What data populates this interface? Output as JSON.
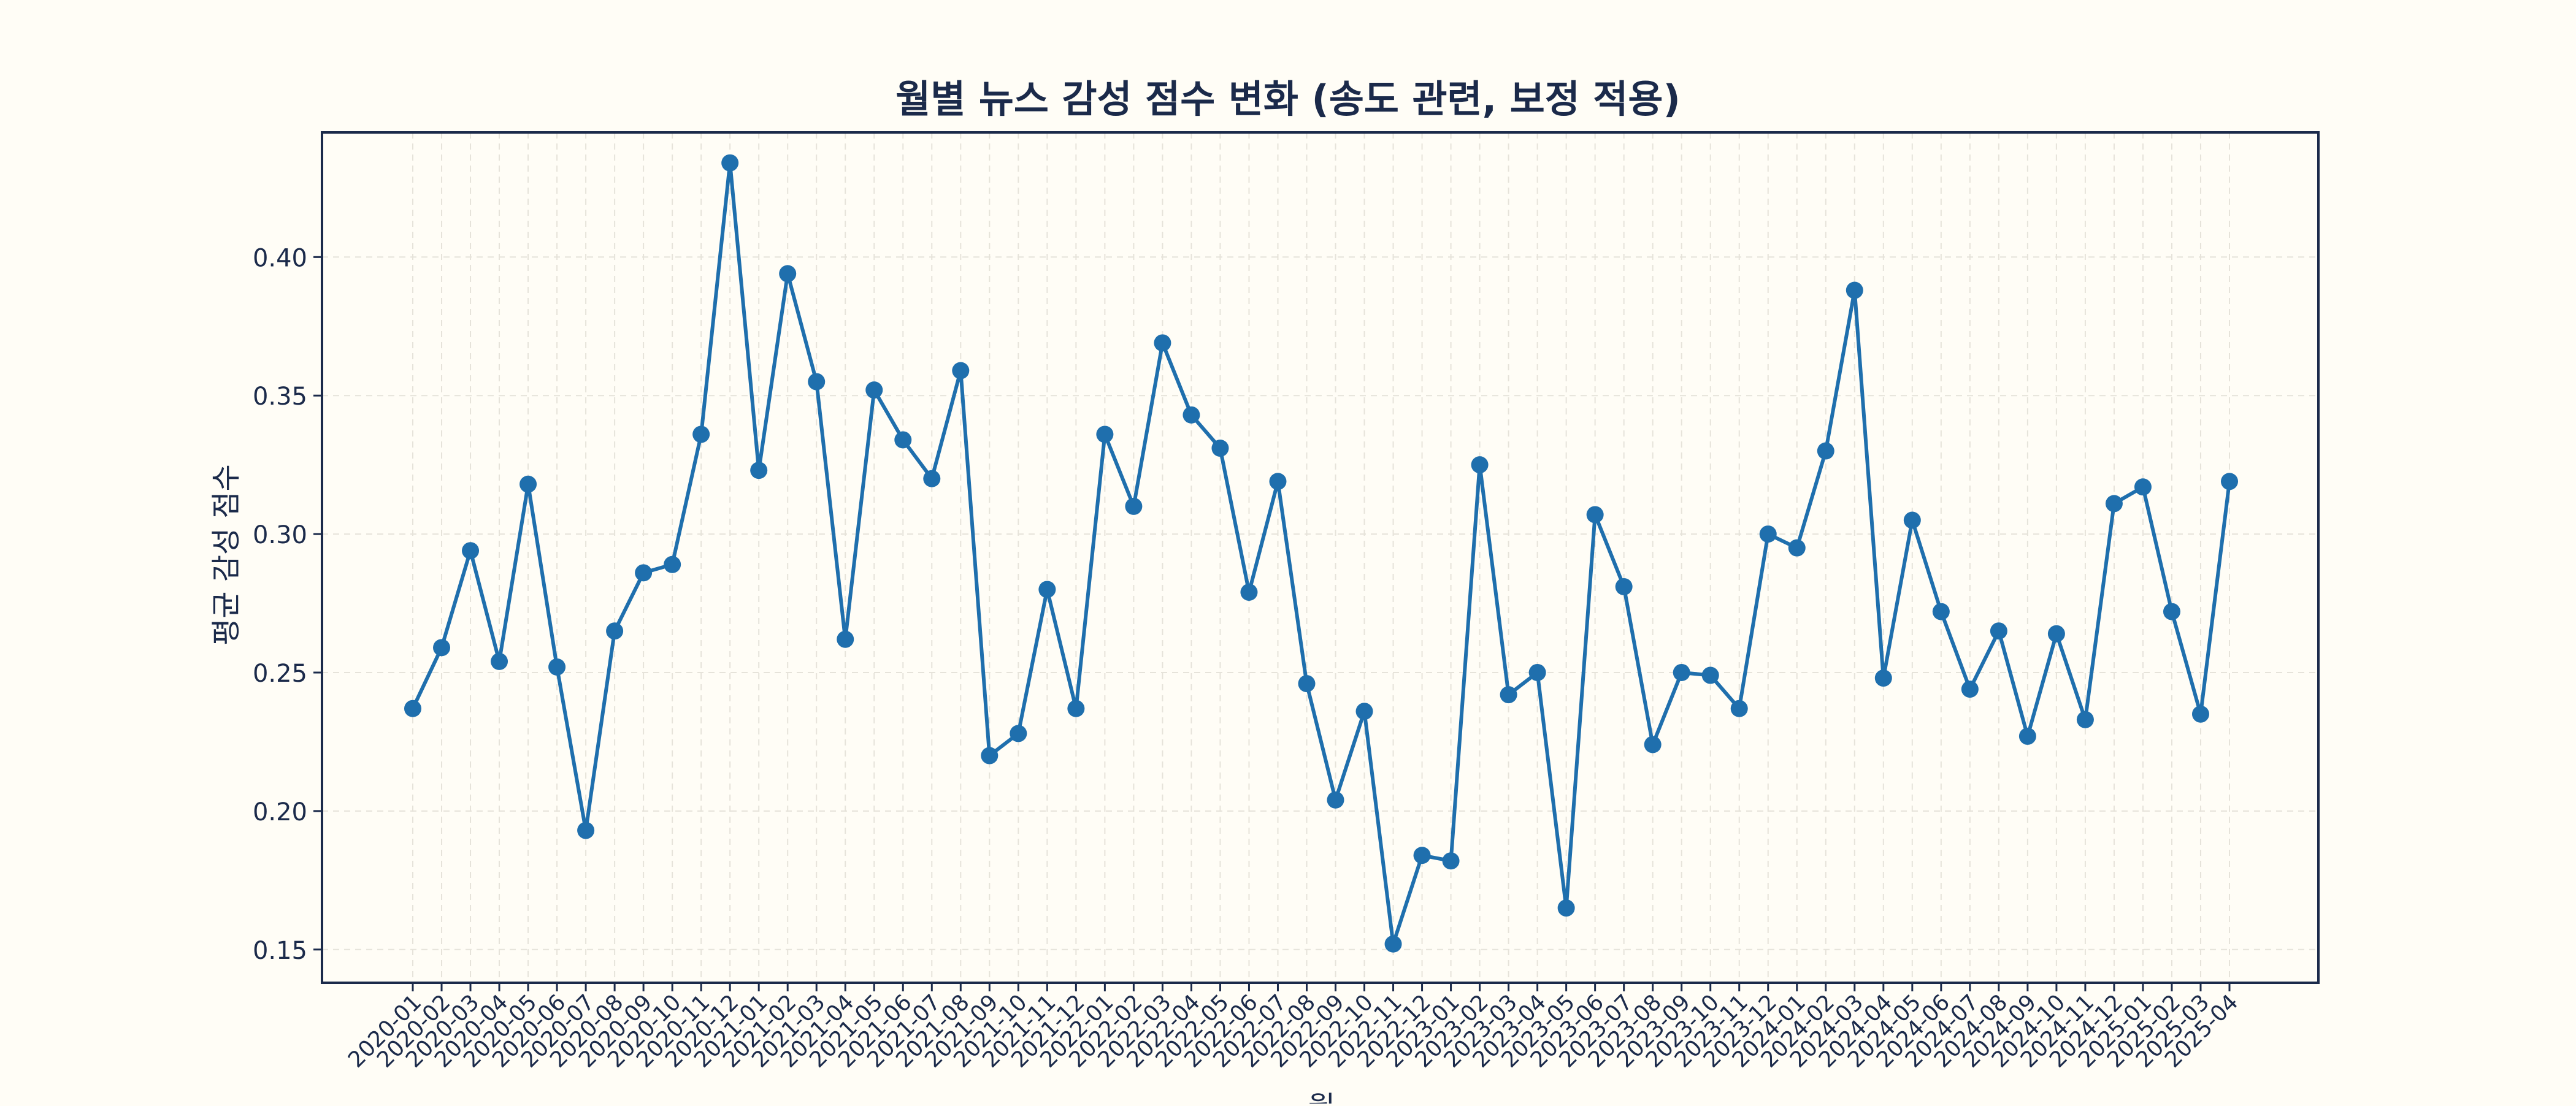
{
  "chart_data": {
    "type": "line",
    "title": "월별 뉴스 감성 점수 변화 (송도 관련, 보정 적용)",
    "xlabel": "월",
    "ylabel": "평균 감성 점수",
    "ylim": [
      0.138,
      0.445
    ],
    "yticks": [
      "0.15",
      "0.20",
      "0.25",
      "0.30",
      "0.35",
      "0.40"
    ],
    "grid": true,
    "colors": {
      "line": "#1f6fad",
      "frame": "#1b2a4a",
      "text": "#1b2a4a",
      "grid": "#e6e3da",
      "background": "#fffdf6"
    },
    "x": [
      "2020-01",
      "2020-02",
      "2020-03",
      "2020-04",
      "2020-05",
      "2020-06",
      "2020-07",
      "2020-08",
      "2020-09",
      "2020-10",
      "2020-11",
      "2020-12",
      "2021-01",
      "2021-02",
      "2021-03",
      "2021-04",
      "2021-05",
      "2021-06",
      "2021-07",
      "2021-08",
      "2021-09",
      "2021-10",
      "2021-11",
      "2021-12",
      "2022-01",
      "2022-02",
      "2022-03",
      "2022-04",
      "2022-05",
      "2022-06",
      "2022-07",
      "2022-08",
      "2022-09",
      "2022-10",
      "2022-11",
      "2022-12",
      "2023-01",
      "2023-02",
      "2023-03",
      "2023-04",
      "2023-05",
      "2023-06",
      "2023-07",
      "2023-08",
      "2023-09",
      "2023-10",
      "2023-11",
      "2023-12",
      "2024-01",
      "2024-02",
      "2024-03",
      "2024-04",
      "2024-05",
      "2024-06",
      "2024-07",
      "2024-08",
      "2024-09",
      "2024-10",
      "2024-11",
      "2024-12",
      "2025-01",
      "2025-02",
      "2025-03",
      "2025-04"
    ],
    "series": [
      {
        "values": [
          0.237,
          0.259,
          0.294,
          0.254,
          0.318,
          0.252,
          0.193,
          0.265,
          0.286,
          0.289,
          0.336,
          0.434,
          0.323,
          0.394,
          0.355,
          0.262,
          0.352,
          0.334,
          0.32,
          0.359,
          0.22,
          0.228,
          0.28,
          0.237,
          0.336,
          0.31,
          0.369,
          0.343,
          0.331,
          0.279,
          0.319,
          0.246,
          0.204,
          0.236,
          0.152,
          0.184,
          0.182,
          0.325,
          0.242,
          0.25,
          0.165,
          0.307,
          0.281,
          0.224,
          0.25,
          0.249,
          0.237,
          0.3,
          0.295,
          0.33,
          0.388,
          0.248,
          0.305,
          0.272,
          0.244,
          0.265,
          0.227,
          0.264,
          0.233,
          0.311,
          0.317,
          0.272,
          0.235,
          0.319
        ]
      }
    ]
  }
}
